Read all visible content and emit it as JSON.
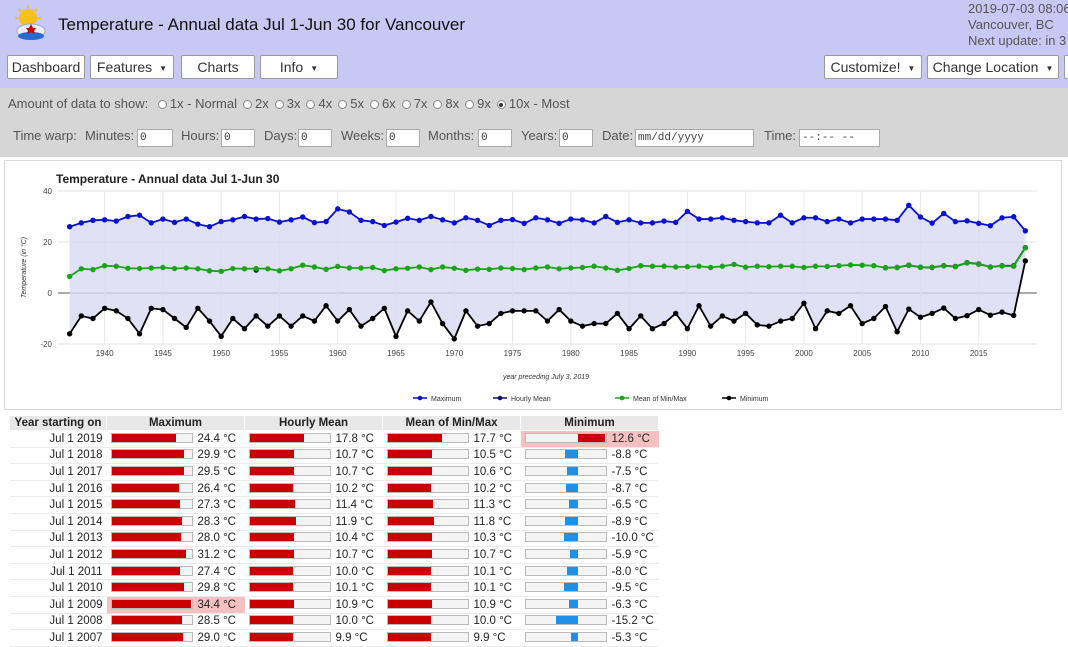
{
  "header": {
    "title": "Temperature - Annual data Jul 1-Jun 30 for Vancouver",
    "datetime": "2019-07-03 08:06",
    "location": "Vancouver, BC",
    "next_update": "Next update: in 3"
  },
  "nav": {
    "dashboard": "Dashboard",
    "features": "Features",
    "charts": "Charts",
    "info": "Info",
    "customize": "Customize!",
    "change_location": "Change Location"
  },
  "controls": {
    "amount_label": "Amount of data to show:",
    "amount_options": [
      "1x - Normal",
      "2x",
      "3x",
      "4x",
      "5x",
      "6x",
      "7x",
      "8x",
      "9x",
      "10x - Most"
    ],
    "amount_selected": "10x - Most",
    "time_warp_label": "Time warp:",
    "minutes_label": "Minutes:",
    "minutes_value": "0",
    "hours_label": "Hours:",
    "hours_value": "0",
    "days_label": "Days:",
    "days_value": "0",
    "weeks_label": "Weeks:",
    "weeks_value": "0",
    "months_label": "Months:",
    "months_value": "0",
    "years_label": "Years:",
    "years_value": "0",
    "date_label": "Date:",
    "date_placeholder": "mm/dd/yyyy",
    "time_label": "Time:",
    "time_placeholder": "--:-- --"
  },
  "colors": {
    "maximum": "#0a10cf",
    "hourly_mean": "#0c1370",
    "mean_minmax": "#1aa41a",
    "minimum": "#000000",
    "band": "#dadaf2",
    "bar_red": "#c80000",
    "bar_blue": "#1e90e6",
    "highlight": "#f4c0c0"
  },
  "chart_data": {
    "type": "line",
    "title": "Temperature - Annual data Jul 1-Jun 30",
    "xlabel": "year preceding July 3, 2019",
    "ylabel": "Temperature (in °C)",
    "ylim": [
      -20,
      40
    ],
    "xlim": [
      1936,
      2020
    ],
    "yticks": [
      40,
      20,
      0,
      -20
    ],
    "xticks": [
      1940,
      1945,
      1950,
      1955,
      1960,
      1965,
      1970,
      1975,
      1980,
      1985,
      1990,
      1995,
      2000,
      2005,
      2010,
      2015
    ],
    "legend_position": "bottom",
    "x": [
      1937,
      1938,
      1939,
      1940,
      1941,
      1942,
      1943,
      1944,
      1945,
      1946,
      1947,
      1948,
      1949,
      1950,
      1951,
      1952,
      1953,
      1954,
      1955,
      1956,
      1957,
      1958,
      1959,
      1960,
      1961,
      1962,
      1963,
      1964,
      1965,
      1966,
      1967,
      1968,
      1969,
      1970,
      1971,
      1972,
      1973,
      1974,
      1975,
      1976,
      1977,
      1978,
      1979,
      1980,
      1981,
      1982,
      1983,
      1984,
      1985,
      1986,
      1987,
      1988,
      1989,
      1990,
      1991,
      1992,
      1993,
      1994,
      1995,
      1996,
      1997,
      1998,
      1999,
      2000,
      2001,
      2002,
      2003,
      2004,
      2005,
      2006,
      2007,
      2008,
      2009,
      2010,
      2011,
      2012,
      2013,
      2014,
      2015,
      2016,
      2017,
      2018,
      2019
    ],
    "series": [
      {
        "name": "Maximum",
        "values": [
          26,
          27.5,
          28.5,
          28.7,
          28.2,
          30,
          30.5,
          27.5,
          29,
          27.7,
          29,
          27,
          26,
          28,
          28.7,
          30,
          29,
          29.2,
          27.8,
          28.7,
          29.8,
          27.6,
          28,
          33,
          31.8,
          28.5,
          28,
          26.5,
          27.8,
          29.3,
          28.5,
          30,
          28.7,
          27.5,
          29.5,
          28.5,
          26.5,
          28.5,
          28.8,
          27.3,
          29.5,
          28.7,
          27.3,
          29,
          28.7,
          27.5,
          30,
          27.7,
          28.7,
          27.5,
          27.5,
          28.2,
          27.7,
          32,
          29,
          29,
          29.5,
          28.5,
          28,
          27.5,
          27.5,
          30.5,
          27.5,
          29.5,
          29.5,
          28,
          29,
          27.5,
          29,
          29,
          29,
          28.5,
          34.4,
          29.8,
          27.4,
          31.2,
          28,
          28.3,
          27.3,
          26.4,
          29.5,
          29.9,
          24.4
        ]
      },
      {
        "name": "Hourly Mean",
        "values": [
          null,
          null,
          null,
          null,
          null,
          null,
          null,
          null,
          null,
          null,
          null,
          null,
          null,
          null,
          null,
          null,
          9,
          null,
          null,
          null,
          null,
          null,
          null,
          null,
          null,
          null,
          null,
          null,
          null,
          null,
          null,
          null,
          null,
          null,
          null,
          null,
          null,
          null,
          null,
          null,
          null,
          null,
          null,
          null,
          null,
          null,
          null,
          null,
          null,
          null,
          null,
          null,
          null,
          null,
          null,
          null,
          null,
          null,
          null,
          null,
          null,
          null,
          null,
          null,
          null,
          null,
          null,
          null,
          null,
          null,
          9.9,
          10,
          10.9,
          10.1,
          10,
          10.7,
          10.4,
          11.9,
          11.4,
          10.2,
          10.7,
          10.7,
          17.8
        ]
      },
      {
        "name": "Mean of Min/Max",
        "values": [
          6.5,
          9.5,
          9.2,
          10.7,
          10.5,
          9.7,
          9.6,
          9.8,
          10,
          9.6,
          9.8,
          9.5,
          8.7,
          8.5,
          9.6,
          9.5,
          9.6,
          9.5,
          8.7,
          9.5,
          10.9,
          10.2,
          9.3,
          10.4,
          9.8,
          9.8,
          10,
          8.8,
          9.5,
          9.7,
          10.2,
          9.2,
          10.2,
          9.7,
          8.9,
          9.4,
          9.3,
          9.8,
          9.6,
          9.2,
          9.8,
          10.2,
          9.5,
          9.8,
          10,
          10.5,
          9.8,
          8.9,
          9.6,
          10.7,
          10.5,
          10.5,
          10.2,
          10.3,
          10.5,
          10,
          10.5,
          11.2,
          10.1,
          10.5,
          10.3,
          10.5,
          10.5,
          10,
          10.5,
          10.4,
          10.7,
          11,
          10.9,
          10.7,
          9.9,
          10,
          10.9,
          10.1,
          10.1,
          10.7,
          10.3,
          11.8,
          11.3,
          10.2,
          10.6,
          10.5,
          17.7
        ]
      },
      {
        "name": "Minimum",
        "values": [
          -16,
          -9,
          -10,
          -6,
          -7,
          -10,
          -16,
          -6,
          -6.5,
          -10,
          -13.5,
          -6,
          -11,
          -17,
          -10,
          -14,
          -9,
          -13,
          -9,
          -13,
          -9,
          -11,
          -5,
          -11,
          -6.5,
          -13,
          -10,
          -6,
          -17,
          -7,
          -11,
          -3.5,
          -12,
          -18,
          -7,
          -13,
          -12,
          -8,
          -7,
          -7,
          -7,
          -11,
          -6.5,
          -11,
          -13,
          -12,
          -12,
          -8,
          -14,
          -9,
          -14,
          -12,
          -8,
          -14,
          -5,
          -13,
          -9,
          -11,
          -8,
          -12.5,
          -13,
          -11,
          -10,
          -4,
          -14,
          -7,
          -8,
          -5,
          -12,
          -10,
          -5.3,
          -15.2,
          -6.3,
          -9.5,
          -8,
          -5.9,
          -10,
          -8.9,
          -6.5,
          -8.7,
          -7.5,
          -8.8,
          12.6
        ]
      }
    ]
  },
  "table": {
    "headers": [
      "Year starting on",
      "Maximum",
      "Hourly Mean",
      "Mean of Min/Max",
      "Minimum"
    ],
    "rows": [
      {
        "year": "Jul 1 2019",
        "max": "24.4 °C",
        "mean": "17.8 °C",
        "mm": "17.7 °C",
        "min": "12.6 °C",
        "max_v": 24.4,
        "mean_v": 17.8,
        "mm_v": 17.7,
        "min_v": 12.6,
        "max_hl": false,
        "min_hl": true,
        "mean_hl": false,
        "mm_hl": false
      },
      {
        "year": "Jul 1 2018",
        "max": "29.9 °C",
        "mean": "10.7 °C",
        "mm": "10.5 °C",
        "min": "-8.8 °C",
        "max_v": 29.9,
        "mean_v": 10.7,
        "mm_v": 10.5,
        "min_v": -8.8
      },
      {
        "year": "Jul 1 2017",
        "max": "29.5 °C",
        "mean": "10.7 °C",
        "mm": "10.6 °C",
        "min": "-7.5 °C",
        "max_v": 29.5,
        "mean_v": 10.7,
        "mm_v": 10.6,
        "min_v": -7.5
      },
      {
        "year": "Jul 1 2016",
        "max": "26.4 °C",
        "mean": "10.2 °C",
        "mm": "10.2 °C",
        "min": "-8.7 °C",
        "max_v": 26.4,
        "mean_v": 10.2,
        "mm_v": 10.2,
        "min_v": -8.7
      },
      {
        "year": "Jul 1 2015",
        "max": "27.3 °C",
        "mean": "11.4 °C",
        "mm": "11.3 °C",
        "min": "-6.5 °C",
        "max_v": 27.3,
        "mean_v": 11.4,
        "mm_v": 11.3,
        "min_v": -6.5
      },
      {
        "year": "Jul 1 2014",
        "max": "28.3 °C",
        "mean": "11.9 °C",
        "mm": "11.8 °C",
        "min": "-8.9 °C",
        "max_v": 28.3,
        "mean_v": 11.9,
        "mm_v": 11.8,
        "min_v": -8.9
      },
      {
        "year": "Jul 1 2013",
        "max": "28.0 °C",
        "mean": "10.4 °C",
        "mm": "10.3 °C",
        "min": "-10.0 °C",
        "max_v": 28.0,
        "mean_v": 10.4,
        "mm_v": 10.3,
        "min_v": -10.0
      },
      {
        "year": "Jul 1 2012",
        "max": "31.2 °C",
        "mean": "10.7 °C",
        "mm": "10.7 °C",
        "min": "-5.9 °C",
        "max_v": 31.2,
        "mean_v": 10.7,
        "mm_v": 10.7,
        "min_v": -5.9
      },
      {
        "year": "Jul 1 2011",
        "max": "27.4 °C",
        "mean": "10.0 °C",
        "mm": "10.1 °C",
        "min": "-8.0 °C",
        "max_v": 27.4,
        "mean_v": 10.0,
        "mm_v": 10.1,
        "min_v": -8.0
      },
      {
        "year": "Jul 1 2010",
        "max": "29.8 °C",
        "mean": "10.1 °C",
        "mm": "10.1 °C",
        "min": "-9.5 °C",
        "max_v": 29.8,
        "mean_v": 10.1,
        "mm_v": 10.1,
        "min_v": -9.5
      },
      {
        "year": "Jul 1 2009",
        "max": "34.4 °C",
        "mean": "10.9 °C",
        "mm": "10.9 °C",
        "min": "-6.3 °C",
        "max_v": 34.4,
        "mean_v": 10.9,
        "mm_v": 10.9,
        "min_v": -6.3,
        "max_hl": true
      },
      {
        "year": "Jul 1 2008",
        "max": "28.5 °C",
        "mean": "10.0 °C",
        "mm": "10.0 °C",
        "min": "-15.2 °C",
        "max_v": 28.5,
        "mean_v": 10.0,
        "mm_v": 10.0,
        "min_v": -15.2
      },
      {
        "year": "Jul 1 2007",
        "max": "29.0 °C",
        "mean": "9.9 °C",
        "mm": "9.9 °C",
        "min": "-5.3 °C",
        "max_v": 29.0,
        "mean_v": 9.9,
        "mm_v": 9.9,
        "min_v": -5.3
      }
    ]
  }
}
